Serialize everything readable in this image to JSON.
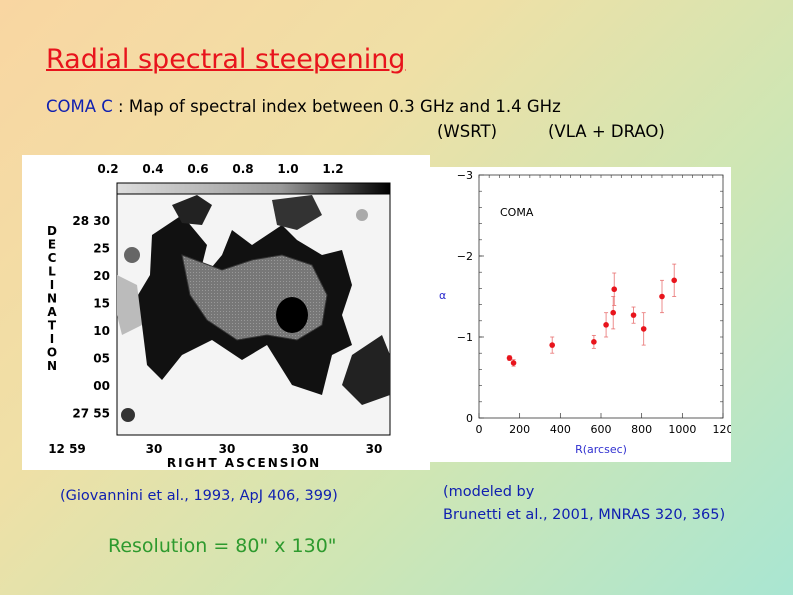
{
  "slide": {
    "title": "Radial spectral steepening",
    "subtitle_label": "COMA C",
    "subtitle_rest": " : Map of spectral index between 0.3 GHz and 1.4 GHz",
    "instrument_left": "(WSRT)",
    "instrument_right": "(VLA + DRAO)",
    "caption_map": "(Giovannini et al., 1993, ApJ 406, 399)",
    "caption_model_line1": "(modeled by",
    "caption_model_line2": "Brunetti et al., 2001, MNRAS 320, 365)",
    "resolution": "Resolution = 80\" x 130\""
  },
  "map": {
    "colorbar_ticks": [
      "0.2",
      "0.4",
      "0.6",
      "0.8",
      "1.0",
      "1.2"
    ],
    "dec_ticks": [
      "28 30",
      "25",
      "20",
      "15",
      "10",
      "05",
      "00",
      "27 55"
    ],
    "ra_ticks": [
      "12 59",
      "30",
      "30",
      "30",
      "30"
    ],
    "ylabel": "DECLINATION",
    "xlabel": "RIGHT ASCENSION"
  },
  "chart_data": {
    "type": "scatter",
    "title": "",
    "annotation": "COMA",
    "xlabel": "R(arcsec)",
    "ylabel": "α",
    "xlim": [
      0,
      1200
    ],
    "ylim": [
      0,
      -3
    ],
    "xticks": [
      "0",
      "200",
      "400",
      "600",
      "800",
      "1000",
      "120"
    ],
    "yticks": [
      "0",
      "−1",
      "−2",
      "−3"
    ],
    "points": [
      {
        "x": 150,
        "y": -0.74,
        "err": 0.03
      },
      {
        "x": 170,
        "y": -0.68,
        "err": 0.04
      },
      {
        "x": 360,
        "y": -0.9,
        "err": 0.1
      },
      {
        "x": 565,
        "y": -0.94,
        "err": 0.08
      },
      {
        "x": 625,
        "y": -1.15,
        "err": 0.15
      },
      {
        "x": 660,
        "y": -1.3,
        "err": 0.2
      },
      {
        "x": 665,
        "y": -1.59,
        "err": 0.2
      },
      {
        "x": 760,
        "y": -1.27,
        "err": 0.1
      },
      {
        "x": 810,
        "y": -1.1,
        "err": 0.2
      },
      {
        "x": 900,
        "y": -1.5,
        "err": 0.2
      },
      {
        "x": 960,
        "y": -1.7,
        "err": 0.2
      }
    ],
    "colors": {
      "point": "#e8141c",
      "label": "#3030d0"
    }
  }
}
